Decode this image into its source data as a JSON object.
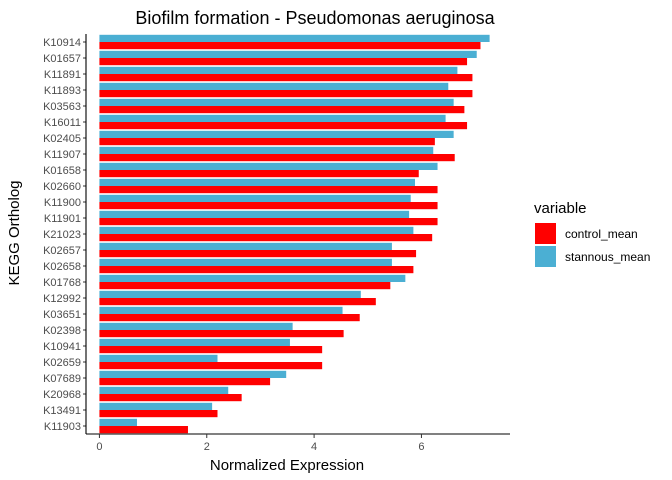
{
  "chart_data": {
    "type": "bar",
    "orientation": "horizontal",
    "title": "Biofilm formation - Pseudomonas aeruginosa",
    "xlabel": "Normalized Expression",
    "ylabel": "KEGG Ortholog",
    "xlim": [
      -0.25,
      7.65
    ],
    "xticks": [
      0,
      2,
      4,
      6
    ],
    "grid": false,
    "legend": {
      "title": "variable",
      "position": "right"
    },
    "categories": [
      "K10914",
      "K01657",
      "K11891",
      "K11893",
      "K03563",
      "K16011",
      "K02405",
      "K11907",
      "K01658",
      "K02660",
      "K11900",
      "K11901",
      "K21023",
      "K02657",
      "K02658",
      "K01768",
      "K12992",
      "K03651",
      "K02398",
      "K10941",
      "K02659",
      "K07689",
      "K20968",
      "K13491",
      "K11903"
    ],
    "series": [
      {
        "name": "control_mean",
        "color": "#ff0000",
        "values": [
          7.1,
          6.85,
          6.95,
          6.95,
          6.8,
          6.85,
          6.25,
          6.62,
          5.95,
          6.3,
          6.3,
          6.3,
          6.2,
          5.9,
          5.85,
          5.42,
          5.15,
          4.85,
          4.55,
          4.15,
          4.15,
          3.18,
          2.65,
          2.2,
          1.65
        ]
      },
      {
        "name": "stannous_mean",
        "color": "#4bafd3",
        "values": [
          7.27,
          7.03,
          6.67,
          6.5,
          6.6,
          6.45,
          6.6,
          6.22,
          6.3,
          5.88,
          5.8,
          5.77,
          5.85,
          5.45,
          5.45,
          5.7,
          4.87,
          4.53,
          3.6,
          3.55,
          2.2,
          3.48,
          2.4,
          2.1,
          0.7
        ]
      }
    ]
  }
}
